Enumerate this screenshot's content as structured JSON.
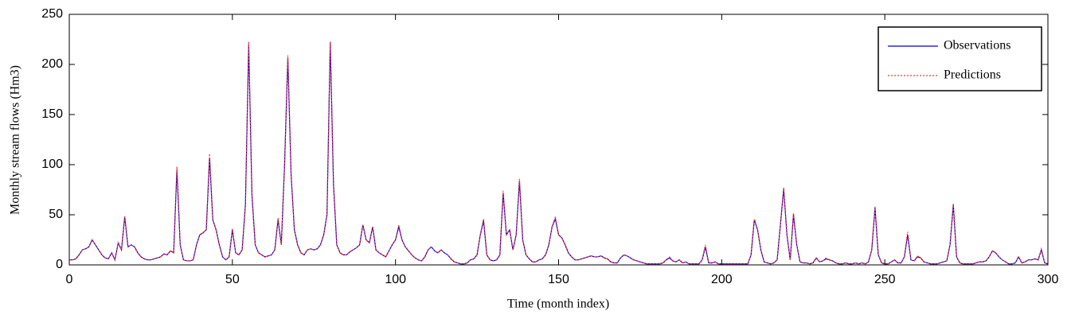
{
  "chart_data": {
    "type": "line",
    "x_label": "Time (month index)",
    "y_label": "Monthly stream flows (Hm3)",
    "xlim": [
      0,
      300
    ],
    "xticks": [
      0,
      50,
      100,
      150,
      200,
      250,
      300
    ],
    "ylim": [
      0,
      250
    ],
    "yticks": [
      0,
      50,
      100,
      150,
      200,
      250
    ],
    "grid": false,
    "legend": "upper right",
    "x": [
      0,
      1,
      2,
      3,
      4,
      5,
      6,
      7,
      8,
      9,
      10,
      11,
      12,
      13,
      14,
      15,
      16,
      17,
      18,
      19,
      20,
      21,
      22,
      23,
      24,
      25,
      26,
      27,
      28,
      29,
      30,
      31,
      32,
      33,
      34,
      35,
      36,
      37,
      38,
      39,
      40,
      41,
      42,
      43,
      44,
      45,
      46,
      47,
      48,
      49,
      50,
      51,
      52,
      53,
      54,
      55,
      56,
      57,
      58,
      59,
      60,
      61,
      62,
      63,
      64,
      65,
      66,
      67,
      68,
      69,
      70,
      71,
      72,
      73,
      74,
      75,
      76,
      77,
      78,
      79,
      80,
      81,
      82,
      83,
      84,
      85,
      86,
      87,
      88,
      89,
      90,
      91,
      92,
      93,
      94,
      95,
      96,
      97,
      98,
      99,
      100,
      101,
      102,
      103,
      104,
      105,
      106,
      107,
      108,
      109,
      110,
      111,
      112,
      113,
      114,
      115,
      116,
      117,
      118,
      119,
      120,
      121,
      122,
      123,
      124,
      125,
      126,
      127,
      128,
      129,
      130,
      131,
      132,
      133,
      134,
      135,
      136,
      137,
      138,
      139,
      140,
      141,
      142,
      143,
      144,
      145,
      146,
      147,
      148,
      149,
      150,
      151,
      152,
      153,
      154,
      155,
      156,
      157,
      158,
      159,
      160,
      161,
      162,
      163,
      164,
      165,
      166,
      167,
      168,
      169,
      170,
      171,
      172,
      173,
      174,
      175,
      176,
      177,
      178,
      179,
      180,
      181,
      182,
      183,
      184,
      185,
      186,
      187,
      188,
      189,
      190,
      191,
      192,
      193,
      194,
      195,
      196,
      197,
      198,
      199,
      200,
      201,
      202,
      203,
      204,
      205,
      206,
      207,
      208,
      209,
      210,
      211,
      212,
      213,
      214,
      215,
      216,
      217,
      218,
      219,
      220,
      221,
      222,
      223,
      224,
      225,
      226,
      227,
      228,
      229,
      230,
      231,
      232,
      233,
      234,
      235,
      236,
      237,
      238,
      239,
      240,
      241,
      242,
      243,
      244,
      245,
      246,
      247,
      248,
      249,
      250,
      251,
      252,
      253,
      254,
      255,
      256,
      257,
      258,
      259,
      260,
      261,
      262,
      263,
      264,
      265,
      266,
      267,
      268,
      269,
      270,
      271,
      272,
      273,
      274,
      275,
      276,
      277,
      278,
      279,
      280,
      281,
      282,
      283,
      284,
      285,
      286,
      287,
      288,
      289,
      290,
      291,
      292,
      293,
      294,
      295,
      296,
      297,
      298,
      299,
      300
    ],
    "series": [
      {
        "name": "Observations",
        "color": "#0000cc",
        "style": "solid",
        "values": [
          5,
          5,
          6,
          10,
          15,
          16,
          18,
          25,
          20,
          15,
          10,
          7,
          6,
          12,
          5,
          22,
          15,
          48,
          18,
          20,
          18,
          12,
          8,
          6,
          5,
          5,
          6,
          7,
          8,
          11,
          10,
          14,
          12,
          95,
          20,
          5,
          4,
          4,
          5,
          20,
          30,
          32,
          35,
          107,
          45,
          35,
          20,
          8,
          5,
          8,
          35,
          12,
          10,
          15,
          60,
          220,
          70,
          20,
          12,
          10,
          8,
          9,
          10,
          15,
          45,
          20,
          100,
          207,
          90,
          35,
          20,
          12,
          10,
          15,
          16,
          15,
          16,
          20,
          30,
          50,
          222,
          80,
          20,
          12,
          10,
          10,
          13,
          15,
          17,
          20,
          40,
          25,
          22,
          38,
          15,
          12,
          10,
          8,
          14,
          20,
          25,
          38,
          25,
          18,
          14,
          10,
          7,
          5,
          4,
          8,
          15,
          18,
          14,
          12,
          15,
          12,
          10,
          6,
          3,
          2,
          1,
          1,
          2,
          5,
          6,
          10,
          30,
          44,
          10,
          5,
          4,
          5,
          10,
          72,
          30,
          35,
          15,
          30,
          84,
          25,
          10,
          6,
          3,
          3,
          5,
          6,
          10,
          20,
          38,
          46,
          30,
          27,
          20,
          12,
          8,
          5,
          5,
          6,
          7,
          8,
          9,
          8,
          8,
          9,
          7,
          6,
          3,
          2,
          2,
          7,
          10,
          9,
          7,
          5,
          4,
          3,
          2,
          1,
          1,
          1,
          1,
          1,
          2,
          5,
          7,
          4,
          3,
          5,
          2,
          3,
          1,
          1,
          1,
          1,
          5,
          18,
          2,
          2,
          3,
          1,
          1,
          1,
          1,
          1,
          1,
          1,
          1,
          1,
          1,
          10,
          45,
          35,
          15,
          3,
          2,
          1,
          2,
          5,
          40,
          76,
          30,
          5,
          50,
          20,
          3,
          2,
          2,
          1,
          2,
          7,
          3,
          4,
          6,
          5,
          4,
          2,
          1,
          1,
          2,
          1,
          1,
          2,
          1,
          2,
          1,
          3,
          15,
          57,
          10,
          2,
          1,
          1,
          3,
          5,
          2,
          2,
          8,
          30,
          5,
          4,
          8,
          7,
          3,
          2,
          1,
          1,
          1,
          2,
          3,
          4,
          20,
          60,
          8,
          2,
          1,
          1,
          1,
          1,
          2,
          3,
          3,
          4,
          8,
          14,
          12,
          8,
          5,
          3,
          1,
          1,
          2,
          8,
          2,
          3,
          5,
          5,
          6,
          5,
          15,
          2,
          1
        ]
      },
      {
        "name": "Predictions",
        "color": "#ff3333",
        "style": "dotted",
        "values": [
          5,
          5,
          6,
          10,
          15,
          16,
          18,
          25,
          20,
          15,
          10,
          7,
          6,
          12,
          5,
          22,
          15,
          49,
          18,
          20,
          18,
          12,
          8,
          6,
          5,
          5,
          6,
          7,
          8,
          11,
          10,
          14,
          12,
          98,
          20,
          5,
          4,
          4,
          5,
          20,
          30,
          32,
          35,
          111,
          45,
          35,
          20,
          8,
          5,
          8,
          36,
          12,
          10,
          15,
          60,
          223,
          70,
          20,
          12,
          10,
          8,
          9,
          10,
          15,
          47,
          20,
          100,
          209,
          90,
          35,
          20,
          12,
          10,
          15,
          16,
          15,
          16,
          20,
          30,
          50,
          223,
          80,
          20,
          12,
          10,
          10,
          13,
          15,
          17,
          20,
          40,
          25,
          22,
          38,
          15,
          12,
          10,
          8,
          14,
          20,
          25,
          40,
          25,
          18,
          14,
          10,
          7,
          5,
          4,
          8,
          15,
          18,
          14,
          12,
          15,
          12,
          10,
          6,
          3,
          2,
          1,
          1,
          2,
          5,
          6,
          10,
          30,
          46,
          10,
          5,
          4,
          5,
          10,
          74,
          30,
          35,
          15,
          30,
          86,
          25,
          10,
          6,
          3,
          3,
          5,
          6,
          10,
          20,
          38,
          48,
          30,
          27,
          20,
          12,
          8,
          5,
          5,
          6,
          7,
          8,
          9,
          8,
          8,
          9,
          7,
          6,
          3,
          2,
          2,
          7,
          10,
          9,
          7,
          5,
          4,
          3,
          2,
          1,
          1,
          1,
          1,
          1,
          2,
          5,
          8,
          4,
          3,
          5,
          2,
          3,
          1,
          1,
          1,
          1,
          5,
          20,
          2,
          2,
          3,
          1,
          1,
          1,
          1,
          1,
          1,
          1,
          1,
          1,
          1,
          10,
          46,
          35,
          15,
          3,
          2,
          1,
          2,
          5,
          40,
          77,
          30,
          5,
          52,
          20,
          3,
          2,
          2,
          1,
          2,
          7,
          3,
          4,
          7,
          5,
          4,
          2,
          1,
          1,
          2,
          1,
          1,
          2,
          1,
          2,
          1,
          3,
          15,
          58,
          10,
          2,
          1,
          1,
          3,
          5,
          2,
          2,
          8,
          33,
          5,
          4,
          9,
          7,
          3,
          2,
          1,
          1,
          1,
          2,
          3,
          4,
          20,
          61,
          8,
          2,
          1,
          1,
          1,
          1,
          2,
          3,
          3,
          4,
          8,
          14,
          12,
          8,
          5,
          3,
          1,
          1,
          2,
          8,
          2,
          3,
          5,
          5,
          6,
          5,
          16,
          2,
          1
        ]
      }
    ]
  }
}
